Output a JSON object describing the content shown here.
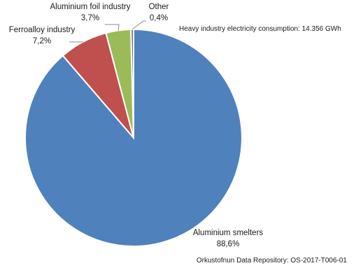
{
  "chart_data": {
    "type": "pie",
    "title": "",
    "slices": [
      {
        "label": "Aluminium smelters",
        "value": 88.6,
        "value_text": "88,6%",
        "color": "#4F81BD"
      },
      {
        "label": "Ferroalloy industry",
        "value": 7.2,
        "value_text": "7,2%",
        "color": "#C0504D"
      },
      {
        "label": "Aluminium foil industry",
        "value": 3.7,
        "value_text": "3,7%",
        "color": "#9BBB59"
      },
      {
        "label": "Other",
        "value": 0.4,
        "value_text": "0,4%",
        "color": "#8064A2"
      }
    ],
    "annotation": "Heavy industry electricity consumption: 14.356 GWh",
    "source": "Orkustofnun Data Repository: OS-2017-T006-01",
    "legend": "none"
  }
}
